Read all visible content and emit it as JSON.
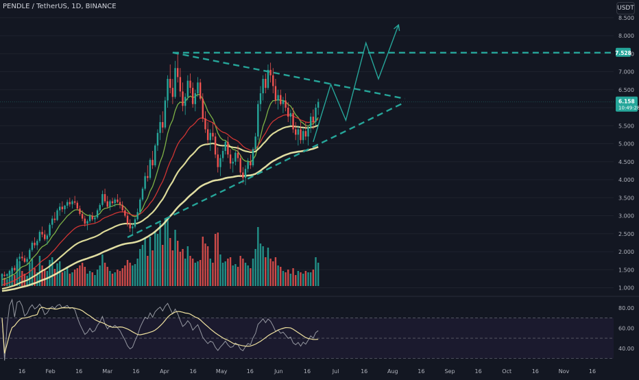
{
  "header": {
    "symbol_title": "PENDLE / TetherUS, 1D, BINANCE",
    "currency_button": "USDT"
  },
  "price_badges": {
    "level_label": "7.528",
    "current_price": "6.158",
    "countdown": "10:49:28"
  },
  "colors": {
    "background": "#131722",
    "rsi_panel_background": "#1b1a2e",
    "up_candle": "#26a69a",
    "down_candle": "#ef5350",
    "ema_fast": "#8bc34a",
    "ema_mid": "#e53935",
    "ema_slow": "#f3f0a6",
    "ema_long": "#f7f3b0",
    "projection": "#26a69a",
    "rsi_line": "#9598a1",
    "rsi_ma": "#f0e2a0"
  },
  "chart_data": [
    {
      "type": "candlestick",
      "title": "PENDLE / TetherUS, 1D, BINANCE",
      "y_axis_ticks": [
        "8.500",
        "8.000",
        "7.500",
        "7.000",
        "6.500",
        "6.000",
        "5.500",
        "5.000",
        "4.500",
        "4.000",
        "3.500",
        "3.000",
        "2.500",
        "2.000",
        "1.500",
        "1.000"
      ],
      "x_axis_ticks": [
        "16",
        "Feb",
        "16",
        "Mar",
        "16",
        "Apr",
        "16",
        "May",
        "16",
        "Jun",
        "16",
        "Jul",
        "16",
        "Aug",
        "16",
        "Sep",
        "16",
        "Oct",
        "16",
        "Nov",
        "16"
      ],
      "ylim": [
        0.8,
        8.8
      ],
      "ohlc": [
        [
          1.32,
          1.4,
          1.28,
          1.36
        ],
        [
          1.36,
          1.45,
          1.3,
          1.33
        ],
        [
          1.33,
          1.4,
          1.25,
          1.38
        ],
        [
          1.38,
          1.5,
          1.35,
          1.47
        ],
        [
          1.47,
          1.6,
          1.42,
          1.55
        ],
        [
          1.55,
          1.62,
          1.45,
          1.49
        ],
        [
          1.49,
          1.85,
          1.47,
          1.8
        ],
        [
          1.8,
          1.95,
          1.7,
          1.86
        ],
        [
          1.86,
          2.0,
          1.75,
          1.82
        ],
        [
          1.82,
          1.9,
          1.68,
          1.72
        ],
        [
          1.72,
          1.85,
          1.65,
          1.8
        ],
        [
          1.8,
          2.1,
          1.78,
          2.05
        ],
        [
          2.05,
          2.3,
          2.0,
          2.25
        ],
        [
          2.25,
          2.4,
          2.1,
          2.18
        ],
        [
          2.18,
          2.35,
          2.05,
          2.3
        ],
        [
          2.3,
          2.6,
          2.25,
          2.55
        ],
        [
          2.55,
          2.7,
          2.4,
          2.48
        ],
        [
          2.48,
          2.6,
          2.3,
          2.35
        ],
        [
          2.35,
          2.5,
          2.2,
          2.45
        ],
        [
          2.45,
          2.8,
          2.4,
          2.75
        ],
        [
          2.75,
          3.0,
          2.65,
          2.92
        ],
        [
          2.92,
          3.1,
          2.8,
          2.88
        ],
        [
          2.88,
          3.2,
          2.85,
          3.15
        ],
        [
          3.15,
          3.35,
          3.0,
          3.25
        ],
        [
          3.25,
          3.4,
          3.1,
          3.18
        ],
        [
          3.18,
          3.3,
          3.05,
          3.28
        ],
        [
          3.28,
          3.45,
          3.2,
          3.38
        ],
        [
          3.38,
          3.5,
          3.25,
          3.32
        ],
        [
          3.32,
          3.45,
          3.2,
          3.4
        ],
        [
          3.4,
          3.55,
          3.3,
          3.36
        ],
        [
          3.36,
          3.42,
          3.15,
          3.2
        ],
        [
          3.2,
          3.28,
          3.0,
          3.05
        ],
        [
          3.05,
          3.15,
          2.85,
          2.92
        ],
        [
          2.92,
          3.0,
          2.7,
          2.78
        ],
        [
          2.78,
          2.9,
          2.6,
          2.85
        ],
        [
          2.85,
          3.05,
          2.8,
          3.0
        ],
        [
          3.0,
          3.1,
          2.85,
          2.9
        ],
        [
          2.9,
          3.0,
          2.8,
          2.95
        ],
        [
          2.95,
          3.2,
          2.9,
          3.15
        ],
        [
          3.15,
          3.35,
          3.1,
          3.3
        ],
        [
          3.3,
          3.7,
          3.25,
          3.6
        ],
        [
          3.6,
          3.75,
          3.35,
          3.4
        ],
        [
          3.4,
          3.55,
          3.2,
          3.25
        ],
        [
          3.25,
          3.45,
          3.15,
          3.4
        ],
        [
          3.4,
          3.5,
          3.3,
          3.35
        ],
        [
          3.35,
          3.5,
          3.25,
          3.45
        ],
        [
          3.45,
          3.6,
          3.35,
          3.38
        ],
        [
          3.38,
          3.5,
          3.2,
          3.3
        ],
        [
          3.3,
          3.4,
          3.1,
          3.15
        ],
        [
          3.15,
          3.25,
          2.95,
          3.0
        ],
        [
          3.0,
          3.1,
          2.7,
          2.78
        ],
        [
          2.78,
          2.9,
          2.55,
          2.65
        ],
        [
          2.65,
          2.8,
          2.45,
          2.7
        ],
        [
          2.7,
          2.95,
          2.65,
          2.9
        ],
        [
          2.9,
          3.2,
          2.85,
          3.1
        ],
        [
          3.1,
          3.5,
          3.05,
          3.45
        ],
        [
          3.45,
          3.8,
          3.4,
          3.75
        ],
        [
          3.75,
          4.2,
          3.7,
          4.1
        ],
        [
          4.1,
          4.4,
          3.95,
          4.05
        ],
        [
          4.05,
          4.6,
          4.0,
          4.55
        ],
        [
          4.55,
          4.8,
          4.3,
          4.4
        ],
        [
          4.4,
          5.0,
          4.35,
          4.95
        ],
        [
          4.95,
          5.4,
          4.8,
          5.3
        ],
        [
          5.3,
          5.8,
          5.1,
          5.6
        ],
        [
          5.6,
          5.9,
          5.3,
          5.45
        ],
        [
          5.45,
          6.3,
          5.4,
          6.2
        ],
        [
          6.2,
          6.9,
          6.0,
          6.8
        ],
        [
          6.8,
          7.2,
          6.4,
          6.55
        ],
        [
          6.55,
          6.8,
          6.1,
          6.3
        ],
        [
          6.3,
          7.3,
          6.25,
          7.1
        ],
        [
          7.1,
          7.55,
          6.7,
          6.85
        ],
        [
          6.85,
          7.1,
          6.3,
          6.45
        ],
        [
          6.45,
          6.7,
          5.9,
          6.05
        ],
        [
          6.05,
          6.4,
          5.8,
          6.3
        ],
        [
          6.3,
          6.9,
          6.2,
          6.75
        ],
        [
          6.75,
          6.95,
          6.4,
          6.55
        ],
        [
          6.55,
          6.7,
          6.0,
          6.1
        ],
        [
          6.1,
          6.5,
          5.9,
          6.4
        ],
        [
          6.4,
          6.85,
          6.3,
          6.7
        ],
        [
          6.7,
          6.8,
          6.2,
          6.25
        ],
        [
          6.25,
          6.4,
          5.6,
          5.7
        ],
        [
          5.7,
          5.9,
          5.3,
          5.4
        ],
        [
          5.4,
          5.6,
          5.0,
          5.1
        ],
        [
          5.1,
          5.4,
          4.8,
          5.3
        ],
        [
          5.3,
          5.6,
          5.1,
          5.2
        ],
        [
          5.2,
          5.3,
          4.6,
          4.7
        ],
        [
          4.7,
          4.9,
          4.2,
          4.35
        ],
        [
          4.35,
          4.7,
          4.1,
          4.6
        ],
        [
          4.6,
          4.9,
          4.5,
          4.8
        ],
        [
          4.8,
          5.1,
          4.7,
          5.05
        ],
        [
          5.05,
          5.2,
          4.6,
          4.7
        ],
        [
          4.7,
          4.85,
          4.3,
          4.45
        ],
        [
          4.45,
          4.6,
          4.2,
          4.5
        ],
        [
          4.5,
          4.8,
          4.4,
          4.75
        ],
        [
          4.75,
          4.95,
          4.5,
          4.6
        ],
        [
          4.6,
          4.7,
          4.1,
          4.2
        ],
        [
          4.2,
          4.35,
          3.9,
          4.05
        ],
        [
          4.05,
          4.4,
          3.85,
          4.3
        ],
        [
          4.3,
          4.6,
          4.2,
          4.5
        ],
        [
          4.5,
          4.7,
          4.3,
          4.4
        ],
        [
          4.4,
          4.9,
          4.35,
          4.85
        ],
        [
          4.85,
          5.3,
          4.8,
          5.2
        ],
        [
          5.2,
          6.2,
          5.1,
          6.1
        ],
        [
          6.1,
          6.6,
          5.9,
          6.4
        ],
        [
          6.4,
          6.9,
          6.2,
          6.8
        ],
        [
          6.8,
          6.95,
          6.4,
          6.55
        ],
        [
          6.55,
          7.2,
          6.5,
          7.05
        ],
        [
          7.05,
          7.25,
          6.7,
          6.9
        ],
        [
          6.9,
          7.1,
          6.4,
          6.6
        ],
        [
          6.6,
          6.8,
          6.1,
          6.2
        ],
        [
          6.2,
          6.5,
          5.95,
          6.35
        ],
        [
          6.35,
          6.5,
          6.05,
          6.1
        ],
        [
          6.1,
          6.3,
          5.85,
          6.2
        ],
        [
          6.2,
          6.4,
          5.9,
          6.0
        ],
        [
          6.0,
          6.15,
          5.6,
          5.75
        ],
        [
          5.75,
          5.95,
          5.5,
          5.85
        ],
        [
          5.85,
          6.0,
          5.3,
          5.4
        ],
        [
          5.4,
          5.6,
          5.1,
          5.25
        ],
        [
          5.25,
          5.5,
          4.95,
          5.4
        ],
        [
          5.4,
          5.6,
          5.0,
          5.1
        ],
        [
          5.1,
          5.45,
          5.0,
          5.35
        ],
        [
          5.35,
          5.6,
          5.1,
          5.2
        ],
        [
          5.2,
          5.5,
          4.95,
          5.45
        ],
        [
          5.45,
          5.85,
          5.3,
          5.75
        ],
        [
          5.75,
          5.95,
          5.4,
          5.6
        ],
        [
          5.6,
          6.1,
          5.5,
          6.0
        ],
        [
          6.0,
          6.25,
          5.8,
          6.158
        ]
      ],
      "volume": [
        0.18,
        0.12,
        0.1,
        0.2,
        0.24,
        0.16,
        0.32,
        0.36,
        0.22,
        0.18,
        0.15,
        0.34,
        0.4,
        0.26,
        0.2,
        0.44,
        0.3,
        0.24,
        0.22,
        0.38,
        0.42,
        0.25,
        0.33,
        0.36,
        0.2,
        0.22,
        0.28,
        0.18,
        0.2,
        0.24,
        0.26,
        0.3,
        0.34,
        0.28,
        0.18,
        0.22,
        0.2,
        0.16,
        0.24,
        0.3,
        0.46,
        0.34,
        0.28,
        0.22,
        0.18,
        0.2,
        0.24,
        0.22,
        0.26,
        0.3,
        0.38,
        0.34,
        0.3,
        0.32,
        0.4,
        0.54,
        0.6,
        0.7,
        0.44,
        0.72,
        0.52,
        0.8,
        0.76,
        0.92,
        0.6,
        0.98,
        1.0,
        0.7,
        0.52,
        0.82,
        0.66,
        0.5,
        0.54,
        0.4,
        0.58,
        0.44,
        0.4,
        0.34,
        0.36,
        0.38,
        0.72,
        0.62,
        0.58,
        0.4,
        0.34,
        0.76,
        0.78,
        0.46,
        0.34,
        0.36,
        0.4,
        0.42,
        0.3,
        0.32,
        0.28,
        0.44,
        0.4,
        0.34,
        0.3,
        0.26,
        0.4,
        0.54,
        0.86,
        0.62,
        0.58,
        0.42,
        0.56,
        0.4,
        0.36,
        0.42,
        0.3,
        0.28,
        0.22,
        0.2,
        0.24,
        0.18,
        0.26,
        0.16,
        0.22,
        0.2,
        0.18,
        0.22,
        0.2,
        0.2,
        0.24,
        0.42,
        0.34,
        0.2,
        0.16
      ],
      "indicators": [
        "EMA 20",
        "EMA 50",
        "EMA 100",
        "EMA 200"
      ],
      "horizontal_level": 7.528,
      "current_price": 6.158,
      "pattern": "symmetrical triangle",
      "projection_path": [
        [
          124,
          5.05
        ],
        [
          131,
          6.65
        ],
        [
          137,
          5.65
        ],
        [
          145,
          7.8
        ],
        [
          150,
          6.8
        ],
        [
          158,
          8.3
        ]
      ]
    },
    {
      "type": "line",
      "name": "RSI",
      "y_axis_ticks": [
        "80.00",
        "60.00",
        "40.00"
      ],
      "ylim": [
        25,
        90
      ],
      "bands": [
        70,
        50,
        30
      ]
    }
  ]
}
